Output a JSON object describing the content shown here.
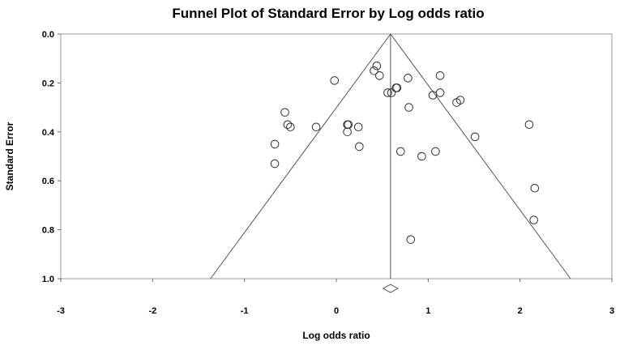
{
  "chart_data": {
    "type": "scatter",
    "title": "Funnel Plot of Standard Error by Log odds ratio",
    "xlabel": "Log odds ratio",
    "ylabel": "Standard Error",
    "xlim": [
      -3,
      3
    ],
    "ylim": [
      0.0,
      1.0
    ],
    "y_inverted": true,
    "x_ticks": [
      "-3",
      "-2",
      "-1",
      "0",
      "1",
      "2",
      "3"
    ],
    "y_ticks": [
      "0.0",
      "0.2",
      "0.4",
      "0.6",
      "0.8",
      "1.0"
    ],
    "pooled_effect": 0.59,
    "funnel_limits_at_se1": [
      -1.37,
      2.55
    ],
    "summary_diamond": {
      "low": 0.51,
      "high": 0.67,
      "se": 1.04
    },
    "grid": false,
    "points": [
      {
        "x": 0.44,
        "y": 0.13
      },
      {
        "x": 0.41,
        "y": 0.15
      },
      {
        "x": 0.47,
        "y": 0.17
      },
      {
        "x": -0.02,
        "y": 0.19
      },
      {
        "x": 0.78,
        "y": 0.18
      },
      {
        "x": 1.13,
        "y": 0.17
      },
      {
        "x": 0.65,
        "y": 0.22
      },
      {
        "x": 0.66,
        "y": 0.22
      },
      {
        "x": 0.56,
        "y": 0.24
      },
      {
        "x": 0.6,
        "y": 0.24
      },
      {
        "x": 1.05,
        "y": 0.25
      },
      {
        "x": 1.13,
        "y": 0.24
      },
      {
        "x": 1.35,
        "y": 0.27
      },
      {
        "x": 1.31,
        "y": 0.28
      },
      {
        "x": 0.79,
        "y": 0.3
      },
      {
        "x": -0.56,
        "y": 0.32
      },
      {
        "x": -0.53,
        "y": 0.37
      },
      {
        "x": -0.5,
        "y": 0.38
      },
      {
        "x": -0.22,
        "y": 0.38
      },
      {
        "x": 0.12,
        "y": 0.37
      },
      {
        "x": 0.13,
        "y": 0.37
      },
      {
        "x": 0.24,
        "y": 0.38
      },
      {
        "x": 0.12,
        "y": 0.4
      },
      {
        "x": 1.51,
        "y": 0.42
      },
      {
        "x": 2.1,
        "y": 0.37
      },
      {
        "x": -0.67,
        "y": 0.45
      },
      {
        "x": 0.25,
        "y": 0.46
      },
      {
        "x": 0.7,
        "y": 0.48
      },
      {
        "x": 1.08,
        "y": 0.48
      },
      {
        "x": 0.93,
        "y": 0.5
      },
      {
        "x": -0.67,
        "y": 0.53
      },
      {
        "x": 2.16,
        "y": 0.63
      },
      {
        "x": 2.15,
        "y": 0.76
      },
      {
        "x": 0.81,
        "y": 0.84
      }
    ]
  }
}
